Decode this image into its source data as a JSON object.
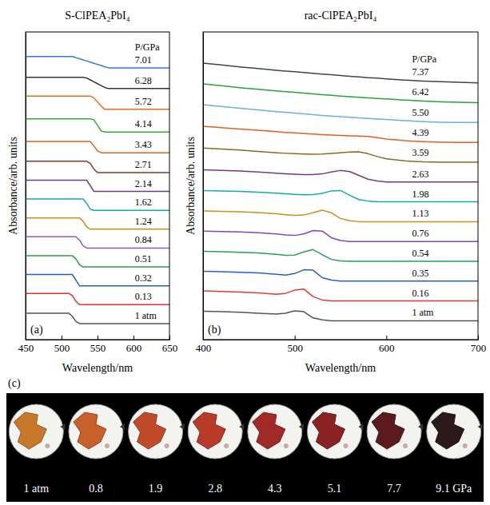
{
  "chart_data": [
    {
      "type": "line",
      "panel_label": "(a)",
      "title": "S-ClPEA₂PbI₄",
      "x_label": "Wavelength/nm",
      "y_label": "Absorbance/arb. units",
      "legend_title": "P/GPa",
      "x": [
        450,
        470,
        490,
        500,
        505,
        510,
        515,
        520,
        525,
        530,
        535,
        540,
        545,
        550,
        555,
        560,
        565,
        570,
        580,
        600,
        625,
        650
      ],
      "xlim": [
        450,
        650
      ],
      "xticks": [
        450,
        500,
        550,
        600,
        650
      ],
      "ylim": [
        -0.3,
        16
      ],
      "tick_labels": "x",
      "series": [
        {
          "name": "1 atm",
          "color": "#555555",
          "values": [
            1.1,
            1.1,
            1.1,
            1.1,
            1.1,
            1.1,
            0.94,
            0.66,
            0.55,
            0.55,
            0.55,
            0.55,
            0.55,
            0.55,
            0.55,
            0.55,
            0.55,
            0.55,
            0.55,
            0.55,
            0.55,
            0.55
          ]
        },
        {
          "name": "0.13",
          "color": "#e0302a",
          "values": [
            2.15,
            2.15,
            2.15,
            2.15,
            2.15,
            2.15,
            2.03,
            1.73,
            1.55,
            1.55,
            1.55,
            1.55,
            1.55,
            1.55,
            1.55,
            1.55,
            1.55,
            1.55,
            1.55,
            1.55,
            1.55,
            1.55
          ]
        },
        {
          "name": "0.32",
          "color": "#2a5cc8",
          "values": [
            3.15,
            3.15,
            3.15,
            3.15,
            3.15,
            3.15,
            3.15,
            2.85,
            2.55,
            2.55,
            2.55,
            2.55,
            2.55,
            2.55,
            2.55,
            2.55,
            2.55,
            2.55,
            2.55,
            2.55,
            2.55,
            2.55
          ]
        },
        {
          "name": "0.51",
          "color": "#2e9e4a",
          "values": [
            4.15,
            4.15,
            4.15,
            4.15,
            4.15,
            4.15,
            4.15,
            3.97,
            3.67,
            3.55,
            3.55,
            3.55,
            3.55,
            3.55,
            3.55,
            3.55,
            3.55,
            3.55,
            3.55,
            3.55,
            3.55,
            3.55
          ]
        },
        {
          "name": "0.84",
          "color": "#8e5cc0",
          "values": [
            5.15,
            5.15,
            5.15,
            5.15,
            5.15,
            5.15,
            5.15,
            5.15,
            4.97,
            4.67,
            4.55,
            4.55,
            4.55,
            4.55,
            4.55,
            4.55,
            4.55,
            4.55,
            4.55,
            4.55,
            4.55,
            4.55
          ]
        },
        {
          "name": "1.24",
          "color": "#c8901a",
          "values": [
            6.15,
            6.15,
            6.15,
            6.15,
            6.15,
            6.15,
            6.15,
            6.15,
            6.15,
            5.97,
            5.67,
            5.55,
            5.55,
            5.55,
            5.55,
            5.55,
            5.55,
            5.55,
            5.55,
            5.55,
            5.55,
            5.55
          ]
        },
        {
          "name": "1.62",
          "color": "#1aa8b0",
          "values": [
            7.15,
            7.15,
            7.15,
            7.15,
            7.15,
            7.15,
            7.15,
            7.15,
            7.15,
            7.15,
            6.91,
            6.61,
            6.55,
            6.55,
            6.55,
            6.55,
            6.55,
            6.55,
            6.55,
            6.55,
            6.55,
            6.55
          ]
        },
        {
          "name": "2.14",
          "color": "#6a3c8c",
          "values": [
            8.15,
            8.15,
            8.15,
            8.15,
            8.15,
            8.15,
            8.15,
            8.15,
            8.15,
            8.15,
            8.15,
            7.85,
            7.55,
            7.55,
            7.55,
            7.55,
            7.55,
            7.55,
            7.55,
            7.55,
            7.55,
            7.55
          ]
        },
        {
          "name": "2.71",
          "color": "#8a3a20",
          "values": [
            9.15,
            9.15,
            9.15,
            9.15,
            9.15,
            9.15,
            9.15,
            9.15,
            9.15,
            9.15,
            9.15,
            9.03,
            8.73,
            8.55,
            8.55,
            8.55,
            8.55,
            8.55,
            8.55,
            8.55,
            8.55,
            8.55
          ]
        },
        {
          "name": "3.43",
          "color": "#c86a2a",
          "values": [
            10.2,
            10.2,
            10.2,
            10.2,
            10.2,
            10.2,
            10.2,
            10.2,
            10.2,
            10.2,
            10.2,
            10.2,
            9.95,
            9.7,
            9.6,
            9.6,
            9.6,
            9.6,
            9.6,
            9.6,
            9.6,
            9.6
          ]
        },
        {
          "name": "4.14",
          "color": "#38a838",
          "values": [
            11.4,
            11.4,
            11.4,
            11.4,
            11.4,
            11.4,
            11.4,
            11.4,
            11.4,
            11.4,
            11.4,
            11.4,
            11.34,
            11.05,
            10.76,
            10.7,
            10.7,
            10.7,
            10.7,
            10.7,
            10.7,
            10.7
          ]
        },
        {
          "name": "5.72",
          "color": "#e07020",
          "values": [
            12.6,
            12.6,
            12.6,
            12.6,
            12.6,
            12.6,
            12.6,
            12.6,
            12.6,
            12.6,
            12.6,
            12.6,
            12.51,
            12.29,
            12.08,
            11.9,
            11.9,
            11.9,
            11.9,
            11.9,
            11.9,
            11.9
          ]
        },
        {
          "name": "6.28",
          "color": "#333333",
          "values": [
            13.6,
            13.6,
            13.6,
            13.6,
            13.6,
            13.6,
            13.6,
            13.6,
            13.6,
            13.6,
            13.56,
            13.46,
            13.36,
            13.26,
            13.16,
            13.06,
            13.0,
            13.0,
            13.0,
            13.0,
            13.0,
            13.0
          ]
        },
        {
          "name": "7.01",
          "color": "#3a78d0",
          "values": [
            14.7,
            14.7,
            14.7,
            14.7,
            14.7,
            14.7,
            14.7,
            14.64,
            14.58,
            14.52,
            14.46,
            14.4,
            14.34,
            14.28,
            14.22,
            14.16,
            14.1,
            14.1,
            14.1,
            14.1,
            14.1,
            14.1
          ]
        }
      ]
    },
    {
      "type": "line",
      "panel_label": "(b)",
      "title": "rac-ClPEA₂PbI₄",
      "x_label": "Wavelength/nm",
      "y_label": "Absorbance/arb. units",
      "legend_title": "P/GPa",
      "x": [
        400,
        420,
        440,
        460,
        480,
        490,
        500,
        510,
        520,
        530,
        540,
        550,
        560,
        570,
        580,
        590,
        600,
        620,
        640,
        660,
        680,
        700
      ],
      "xlim": [
        400,
        700
      ],
      "xticks": [
        400,
        500,
        600,
        700
      ],
      "ylim": [
        -0.3,
        16
      ],
      "tick_labels": "x",
      "series": [
        {
          "name": "1 atm",
          "color": "#555555",
          "values": [
            1.2,
            1.18,
            1.15,
            1.1,
            1.05,
            1.1,
            1.22,
            1.18,
            0.85,
            0.75,
            0.7,
            0.7,
            0.7,
            0.7,
            0.7,
            0.7,
            0.7,
            0.7,
            0.7,
            0.7,
            0.7,
            0.7
          ]
        },
        {
          "name": "0.16",
          "color": "#e03a3a",
          "values": [
            2.28,
            2.25,
            2.22,
            2.18,
            2.1,
            2.15,
            2.32,
            2.38,
            1.98,
            1.8,
            1.75,
            1.75,
            1.75,
            1.75,
            1.75,
            1.75,
            1.75,
            1.75,
            1.75,
            1.75,
            1.75,
            1.75
          ]
        },
        {
          "name": "0.35",
          "color": "#2a5fc8",
          "values": [
            3.32,
            3.3,
            3.27,
            3.23,
            3.16,
            3.12,
            3.2,
            3.4,
            3.38,
            2.98,
            2.85,
            2.8,
            2.8,
            2.8,
            2.8,
            2.8,
            2.8,
            2.8,
            2.8,
            2.8,
            2.8,
            2.8
          ]
        },
        {
          "name": "0.54",
          "color": "#2a9e60",
          "values": [
            4.38,
            4.36,
            4.33,
            4.29,
            4.22,
            4.17,
            4.18,
            4.35,
            4.47,
            4.2,
            3.95,
            3.87,
            3.85,
            3.85,
            3.85,
            3.85,
            3.85,
            3.85,
            3.85,
            3.85,
            3.85,
            3.85
          ]
        },
        {
          "name": "0.76",
          "color": "#7a4cc0",
          "values": [
            5.45,
            5.43,
            5.4,
            5.36,
            5.3,
            5.25,
            5.22,
            5.3,
            5.48,
            5.45,
            5.1,
            4.95,
            4.9,
            4.9,
            4.9,
            4.9,
            4.9,
            4.9,
            4.9,
            4.9,
            4.9,
            4.9
          ]
        },
        {
          "name": "1.13",
          "color": "#c89020",
          "values": [
            6.52,
            6.5,
            6.47,
            6.43,
            6.37,
            6.32,
            6.28,
            6.3,
            6.42,
            6.56,
            6.42,
            6.12,
            6.0,
            5.95,
            5.95,
            5.95,
            5.95,
            5.95,
            5.95,
            5.95,
            5.95,
            5.95
          ]
        },
        {
          "name": "1.98",
          "color": "#18a8b0",
          "values": [
            7.6,
            7.58,
            7.55,
            7.51,
            7.46,
            7.43,
            7.4,
            7.37,
            7.38,
            7.45,
            7.58,
            7.6,
            7.35,
            7.12,
            7.04,
            7.0,
            7.0,
            7.0,
            7.0,
            7.0,
            7.0,
            7.0
          ]
        },
        {
          "name": "2.63",
          "color": "#7a3a7a",
          "values": [
            8.7,
            8.67,
            8.63,
            8.58,
            8.52,
            8.49,
            8.46,
            8.44,
            8.44,
            8.48,
            8.58,
            8.66,
            8.6,
            8.4,
            8.2,
            8.1,
            8.05,
            8.05,
            8.05,
            8.05,
            8.05,
            8.05
          ]
        },
        {
          "name": "3.59",
          "color": "#8a6a20",
          "values": [
            9.85,
            9.8,
            9.74,
            9.67,
            9.6,
            9.57,
            9.55,
            9.53,
            9.52,
            9.53,
            9.56,
            9.6,
            9.64,
            9.65,
            9.55,
            9.4,
            9.28,
            9.17,
            9.12,
            9.1,
            9.1,
            9.1
          ]
        },
        {
          "name": "4.39",
          "color": "#e0602a",
          "values": [
            11.0,
            10.93,
            10.86,
            10.79,
            10.72,
            10.68,
            10.65,
            10.62,
            10.59,
            10.56,
            10.54,
            10.52,
            10.5,
            10.49,
            10.46,
            10.4,
            10.33,
            10.24,
            10.19,
            10.16,
            10.15,
            10.15
          ]
        },
        {
          "name": "5.50",
          "color": "#6ab0e0",
          "values": [
            12.15,
            12.05,
            11.96,
            11.87,
            11.78,
            11.74,
            11.7,
            11.66,
            11.62,
            11.58,
            11.54,
            11.51,
            11.48,
            11.45,
            11.42,
            11.39,
            11.36,
            11.3,
            11.25,
            11.22,
            11.21,
            11.2
          ]
        },
        {
          "name": "6.42",
          "color": "#2aa040",
          "values": [
            13.25,
            13.15,
            13.05,
            12.96,
            12.88,
            12.84,
            12.8,
            12.76,
            12.72,
            12.68,
            12.64,
            12.6,
            12.57,
            12.54,
            12.51,
            12.48,
            12.45,
            12.39,
            12.34,
            12.3,
            12.27,
            12.25
          ]
        },
        {
          "name": "7.37",
          "color": "#444444",
          "values": [
            14.35,
            14.25,
            14.15,
            14.06,
            13.97,
            13.93,
            13.89,
            13.85,
            13.81,
            13.77,
            13.73,
            13.69,
            13.65,
            13.62,
            13.58,
            13.55,
            13.51,
            13.45,
            13.4,
            13.36,
            13.33,
            13.3
          ]
        }
      ]
    },
    {
      "type": "photo_strip",
      "panel_label": "(c)",
      "labels": [
        "1 atm",
        "0.8",
        "1.9",
        "2.8",
        "4.3",
        "5.1",
        "7.7",
        "9.1 GPa"
      ],
      "colors": [
        "#c8782a",
        "#c8602a",
        "#c04a2a",
        "#b83a28",
        "#a02a28",
        "#8a2224",
        "#5a1a1e",
        "#2a1a1a"
      ]
    }
  ]
}
